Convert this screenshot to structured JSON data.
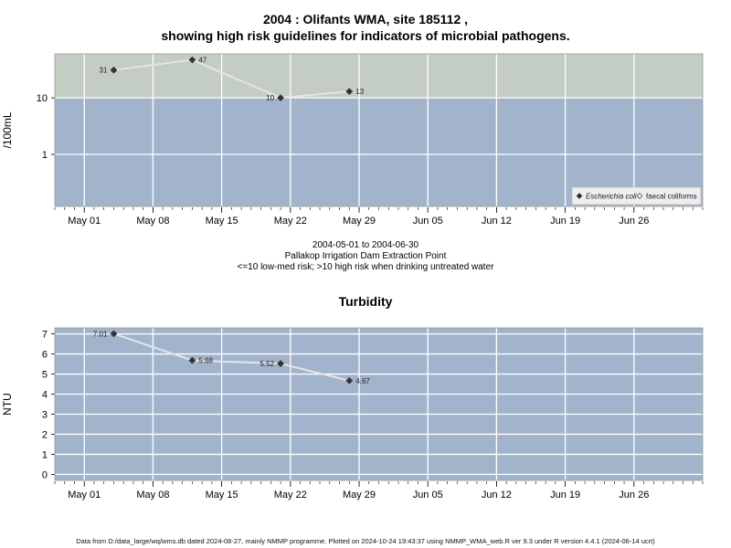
{
  "chart_data": [
    {
      "type": "line",
      "title_line1": "2004 : Olifants WMA, site 185112 ,",
      "title_line2": "showing high risk guidelines for indicators of microbial pathogens.",
      "subtitle_lines": [
        "2004-05-01 to 2004-06-30",
        "Pallakop Irrigation Dam Extraction Point",
        "<=10 low-med risk; >10 high risk when drinking untreated water"
      ],
      "ylabel": "/100mL",
      "y_scale": "log",
      "ylim": [
        0.12,
        60
      ],
      "yticks": [
        {
          "value": 1,
          "label": "1"
        },
        {
          "value": 10,
          "label": "10"
        }
      ],
      "threshold": 10,
      "xlim": [
        "2004-04-28",
        "2004-07-03"
      ],
      "xticks": [
        {
          "date": "2004-05-01",
          "label": "May 01"
        },
        {
          "date": "2004-05-08",
          "label": "May 08"
        },
        {
          "date": "2004-05-15",
          "label": "May 15"
        },
        {
          "date": "2004-05-22",
          "label": "May 22"
        },
        {
          "date": "2004-05-29",
          "label": "May 29"
        },
        {
          "date": "2004-06-05",
          "label": "Jun 05"
        },
        {
          "date": "2004-06-12",
          "label": "Jun 12"
        },
        {
          "date": "2004-06-19",
          "label": "Jun 19"
        },
        {
          "date": "2004-06-26",
          "label": "Jun 26"
        }
      ],
      "series": [
        {
          "name": "Escherichia coli",
          "marker": "filled-diamond",
          "points": [
            {
              "date": "2004-05-04",
              "value": 31,
              "label": "31",
              "label_side": "left"
            },
            {
              "date": "2004-05-12",
              "value": 47,
              "label": "47",
              "label_side": "right"
            },
            {
              "date": "2004-05-21",
              "value": 10,
              "label": "10",
              "label_side": "left"
            },
            {
              "date": "2004-05-28",
              "value": 13,
              "label": "13",
              "label_side": "right"
            }
          ]
        }
      ],
      "legend": {
        "position": "bottom-right",
        "items": [
          {
            "label": "Escherichia coli",
            "marker": "filled-diamond",
            "italic": true
          },
          {
            "label": "faecal coliforms",
            "marker": "open-diamond",
            "italic": false
          }
        ]
      },
      "colors": {
        "high_risk_band": "#c4cdc3",
        "low_risk_band": "#a2b4cc",
        "line": "#e4e4e4",
        "marker": "#333333"
      }
    },
    {
      "type": "line",
      "title": "Turbidity",
      "ylabel": "NTU",
      "ylim": [
        -0.3,
        7.3
      ],
      "yticks": [
        {
          "value": 0,
          "label": "0"
        },
        {
          "value": 1,
          "label": "1"
        },
        {
          "value": 2,
          "label": "2"
        },
        {
          "value": 3,
          "label": "3"
        },
        {
          "value": 4,
          "label": "4"
        },
        {
          "value": 5,
          "label": "5"
        },
        {
          "value": 6,
          "label": "6"
        },
        {
          "value": 7,
          "label": "7"
        }
      ],
      "xlim": [
        "2004-04-28",
        "2004-07-03"
      ],
      "xticks": [
        {
          "date": "2004-05-01",
          "label": "May 01"
        },
        {
          "date": "2004-05-08",
          "label": "May 08"
        },
        {
          "date": "2004-05-15",
          "label": "May 15"
        },
        {
          "date": "2004-05-22",
          "label": "May 22"
        },
        {
          "date": "2004-05-29",
          "label": "May 29"
        },
        {
          "date": "2004-06-05",
          "label": "Jun 05"
        },
        {
          "date": "2004-06-12",
          "label": "Jun 12"
        },
        {
          "date": "2004-06-19",
          "label": "Jun 19"
        },
        {
          "date": "2004-06-26",
          "label": "Jun 26"
        }
      ],
      "series": [
        {
          "marker": "filled-diamond",
          "points": [
            {
              "date": "2004-05-04",
              "value": 7.01,
              "label": "7.01",
              "label_side": "left"
            },
            {
              "date": "2004-05-12",
              "value": 5.68,
              "label": "5.68",
              "label_side": "right"
            },
            {
              "date": "2004-05-21",
              "value": 5.52,
              "label": "5.52",
              "label_side": "left"
            },
            {
              "date": "2004-05-28",
              "value": 4.67,
              "label": "4.67",
              "label_side": "right"
            }
          ]
        }
      ],
      "colors": {
        "background": "#a2b4cc",
        "line": "#e4e4e4",
        "marker": "#333333"
      }
    }
  ],
  "footer": "Data from D:/data_large/wq/wms.db dated 2024-08-27, mainly NMMP programme. Plotted on 2024-10-24 19:43:37 using NMMP_WMA_web.R ver 9.3 under R version 4.4.1 (2024-06-14 ucrt)"
}
